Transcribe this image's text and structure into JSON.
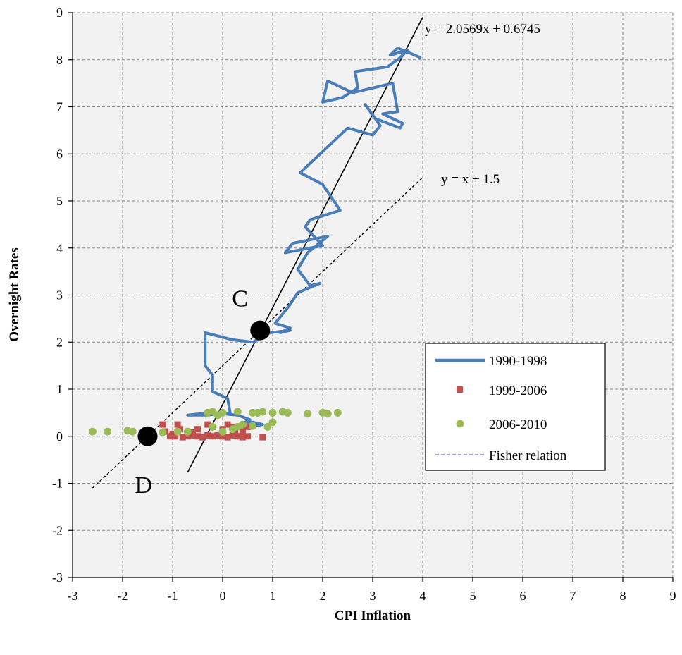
{
  "chart_data": {
    "type": "scatter",
    "xlabel": "CPI Inflation",
    "ylabel": "Overnight Rates",
    "xlim": [
      -3,
      9
    ],
    "ylim": [
      -3,
      9
    ],
    "x_ticks": [
      "-3",
      "-2",
      "-1",
      "0",
      "1",
      "2",
      "3",
      "4",
      "5",
      "6",
      "7",
      "8",
      "9"
    ],
    "y_ticks": [
      "-3",
      "-2",
      "-1",
      "0",
      "1",
      "2",
      "3",
      "4",
      "5",
      "6",
      "7",
      "8",
      "9"
    ],
    "grid": true,
    "legend_position": "right-middle",
    "legend": [
      "1990-1998",
      "1999-2006",
      "2006-2010",
      "Fisher relation"
    ],
    "colors": {
      "s1990": "#4a7ebb",
      "s1999": "#c0504d",
      "s2006": "#9bbb59",
      "fisher_legend": "#7f7fb8",
      "grid": "#8c8c8c",
      "plot_bg": "#f2f2f2"
    },
    "series": [
      {
        "name": "1990-1998",
        "type": "line",
        "points": [
          [
            3.95,
            8.05
          ],
          [
            3.5,
            8.25
          ],
          [
            3.35,
            8.1
          ],
          [
            3.7,
            8.2
          ],
          [
            3.55,
            8.05
          ],
          [
            3.3,
            7.85
          ],
          [
            2.65,
            7.75
          ],
          [
            2.7,
            7.4
          ],
          [
            2.4,
            7.2
          ],
          [
            2.0,
            7.1
          ],
          [
            2.1,
            7.55
          ],
          [
            2.6,
            7.3
          ],
          [
            3.4,
            7.5
          ],
          [
            3.5,
            6.9
          ],
          [
            3.2,
            6.85
          ],
          [
            3.6,
            6.65
          ],
          [
            3.55,
            6.55
          ],
          [
            3.05,
            6.75
          ],
          [
            2.85,
            7.05
          ],
          [
            3.15,
            6.6
          ],
          [
            3.0,
            6.4
          ],
          [
            2.5,
            6.55
          ],
          [
            2.0,
            6.05
          ],
          [
            1.55,
            5.6
          ],
          [
            2.0,
            5.35
          ],
          [
            2.35,
            4.8
          ],
          [
            1.75,
            4.6
          ],
          [
            1.65,
            4.45
          ],
          [
            2.0,
            4.05
          ],
          [
            1.5,
            3.95
          ],
          [
            1.25,
            3.9
          ],
          [
            1.4,
            4.1
          ],
          [
            2.1,
            4.25
          ],
          [
            1.7,
            3.9
          ],
          [
            1.5,
            3.55
          ],
          [
            1.75,
            3.2
          ],
          [
            1.95,
            3.25
          ],
          [
            1.5,
            3.05
          ],
          [
            1.35,
            2.8
          ],
          [
            1.2,
            2.6
          ],
          [
            1.05,
            2.4
          ],
          [
            1.35,
            2.3
          ],
          [
            1.15,
            2.2
          ],
          [
            1.35,
            2.25
          ],
          [
            0.95,
            2.2
          ],
          [
            0.6,
            2.0
          ],
          [
            0.2,
            2.05
          ],
          [
            -0.35,
            2.2
          ],
          [
            -0.35,
            2.0
          ],
          [
            -0.35,
            1.5
          ],
          [
            -0.2,
            1.3
          ],
          [
            -0.2,
            0.95
          ],
          [
            0.1,
            0.8
          ],
          [
            0.15,
            0.5
          ],
          [
            -0.3,
            0.45
          ],
          [
            -0.7,
            0.45
          ],
          [
            -0.25,
            0.5
          ],
          [
            0.3,
            0.45
          ],
          [
            0.55,
            0.35
          ],
          [
            0.45,
            0.3
          ],
          [
            0.4,
            0.25
          ],
          [
            0.6,
            0.3
          ],
          [
            0.8,
            0.25
          ],
          [
            0.65,
            0.22
          ],
          [
            0.45,
            0.2
          ]
        ]
      },
      {
        "name": "1999-2006",
        "type": "scatter",
        "points": [
          [
            -1.2,
            0.25
          ],
          [
            -0.9,
            0.25
          ],
          [
            -0.85,
            0.15
          ],
          [
            -0.5,
            0.15
          ],
          [
            -0.3,
            0.25
          ],
          [
            -0.2,
            0.2
          ],
          [
            0.0,
            0.15
          ],
          [
            0.1,
            0.25
          ],
          [
            0.2,
            0.2
          ],
          [
            0.4,
            0.1
          ],
          [
            0.5,
            0.2
          ],
          [
            -1.05,
            0.0
          ],
          [
            -1.0,
            0.05
          ],
          [
            -0.95,
            0.0
          ],
          [
            -0.8,
            -0.02
          ],
          [
            -0.7,
            0.0
          ],
          [
            -0.6,
            0.02
          ],
          [
            -0.5,
            0.0
          ],
          [
            -0.4,
            -0.02
          ],
          [
            -0.3,
            0.02
          ],
          [
            -0.2,
            0.0
          ],
          [
            -0.1,
            0.02
          ],
          [
            0.0,
            0.0
          ],
          [
            0.1,
            -0.02
          ],
          [
            0.2,
            0.02
          ],
          [
            0.3,
            0.0
          ],
          [
            0.4,
            -0.02
          ],
          [
            0.5,
            0.0
          ],
          [
            0.8,
            -0.02
          ],
          [
            -1.15,
            0.1
          ],
          [
            -0.6,
            0.08
          ],
          [
            0.25,
            0.08
          ]
        ]
      },
      {
        "name": "2006-2010",
        "type": "scatter",
        "points": [
          [
            -2.6,
            0.1
          ],
          [
            -2.3,
            0.1
          ],
          [
            -1.9,
            0.12
          ],
          [
            -1.8,
            0.1
          ],
          [
            -1.5,
            0.05
          ],
          [
            -1.2,
            0.08
          ],
          [
            -0.9,
            0.1
          ],
          [
            -0.7,
            0.1
          ],
          [
            -0.3,
            0.5
          ],
          [
            -0.2,
            0.52
          ],
          [
            -0.1,
            0.45
          ],
          [
            0.0,
            0.5
          ],
          [
            0.3,
            0.52
          ],
          [
            0.6,
            0.5
          ],
          [
            0.7,
            0.5
          ],
          [
            0.8,
            0.52
          ],
          [
            1.0,
            0.5
          ],
          [
            1.2,
            0.52
          ],
          [
            1.3,
            0.5
          ],
          [
            1.7,
            0.48
          ],
          [
            2.0,
            0.5
          ],
          [
            2.1,
            0.48
          ],
          [
            2.3,
            0.5
          ],
          [
            0.3,
            0.2
          ],
          [
            0.4,
            0.25
          ],
          [
            0.6,
            0.22
          ],
          [
            0.9,
            0.2
          ],
          [
            1.0,
            0.3
          ],
          [
            -0.2,
            0.2
          ],
          [
            0.0,
            0.1
          ],
          [
            0.2,
            0.15
          ]
        ]
      }
    ],
    "lines": [
      {
        "equation": "y = 2.0569x + 0.6745",
        "style": "solid",
        "x_range": [
          -0.7,
          4.0
        ]
      },
      {
        "equation": "y = x + 1.5",
        "style": "dashed",
        "x_range": [
          -2.6,
          4.0
        ]
      }
    ],
    "points": [
      {
        "label": "C",
        "x": 0.75,
        "y": 2.25
      },
      {
        "label": "D",
        "x": -1.5,
        "y": 0.0
      }
    ]
  }
}
